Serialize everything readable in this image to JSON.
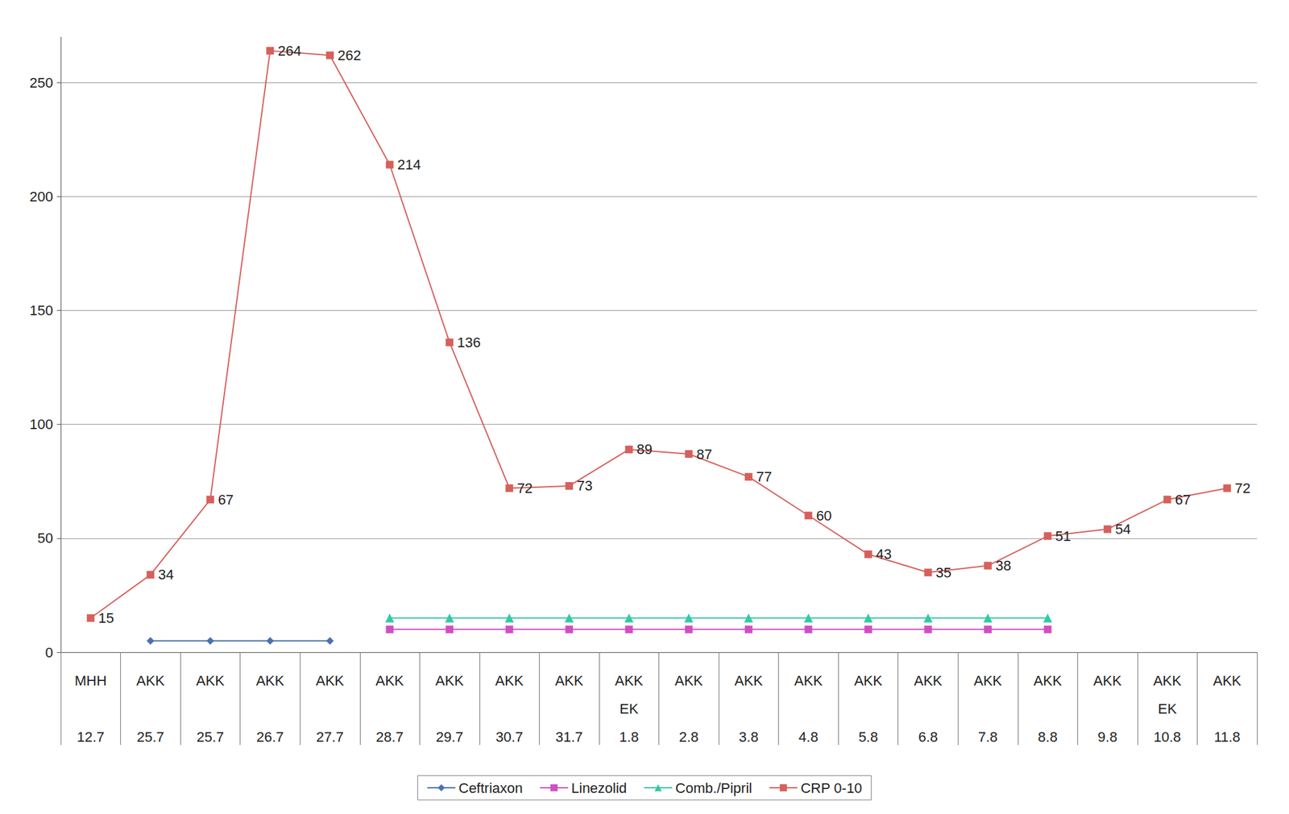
{
  "chart_data": {
    "type": "line",
    "categories": [
      "MHH\n12.7",
      "AKK\n25.7",
      "AKK\n25.7",
      "AKK\n26.7",
      "AKK\n27.7",
      "AKK\n28.7",
      "AKK\n29.7",
      "AKK\n30.7",
      "AKK\n31.7",
      "AKK\nEK\n1.8",
      "AKK\n2.8",
      "AKK\n3.8",
      "AKK\n4.8",
      "AKK\n5.8",
      "AKK\n6.8",
      "AKK\n7.8",
      "AKK\n8.8",
      "AKK\n9.8",
      "AKK\nEK\n10.8",
      "AKK\n11.8"
    ],
    "series": [
      {
        "name": "Ceftriaxon",
        "color": "#4a72b0",
        "marker": "diamond",
        "values": [
          null,
          5,
          5,
          5,
          5,
          null,
          null,
          null,
          null,
          null,
          null,
          null,
          null,
          null,
          null,
          null,
          null,
          null,
          null,
          null
        ]
      },
      {
        "name": "Linezolid",
        "color": "#d04fc4",
        "marker": "square",
        "values": [
          null,
          null,
          null,
          null,
          null,
          10,
          10,
          10,
          10,
          10,
          10,
          10,
          10,
          10,
          10,
          10,
          10,
          null,
          null,
          null
        ]
      },
      {
        "name": "Comb./Pipril",
        "color": "#33c9a8",
        "marker": "triangle",
        "values": [
          null,
          null,
          null,
          null,
          null,
          15,
          15,
          15,
          15,
          15,
          15,
          15,
          15,
          15,
          15,
          15,
          15,
          null,
          null,
          null
        ]
      },
      {
        "name": "CRP 0-10",
        "color": "#d6605c",
        "marker": "square",
        "data_labels": true,
        "values": [
          15,
          34,
          67,
          264,
          262,
          214,
          136,
          72,
          73,
          89,
          87,
          77,
          60,
          43,
          35,
          38,
          51,
          54,
          67,
          72
        ]
      }
    ],
    "ylim": [
      0,
      270
    ],
    "yticks": [
      0,
      50,
      100,
      150,
      200,
      250
    ],
    "grid": true,
    "legend": "bottom"
  }
}
